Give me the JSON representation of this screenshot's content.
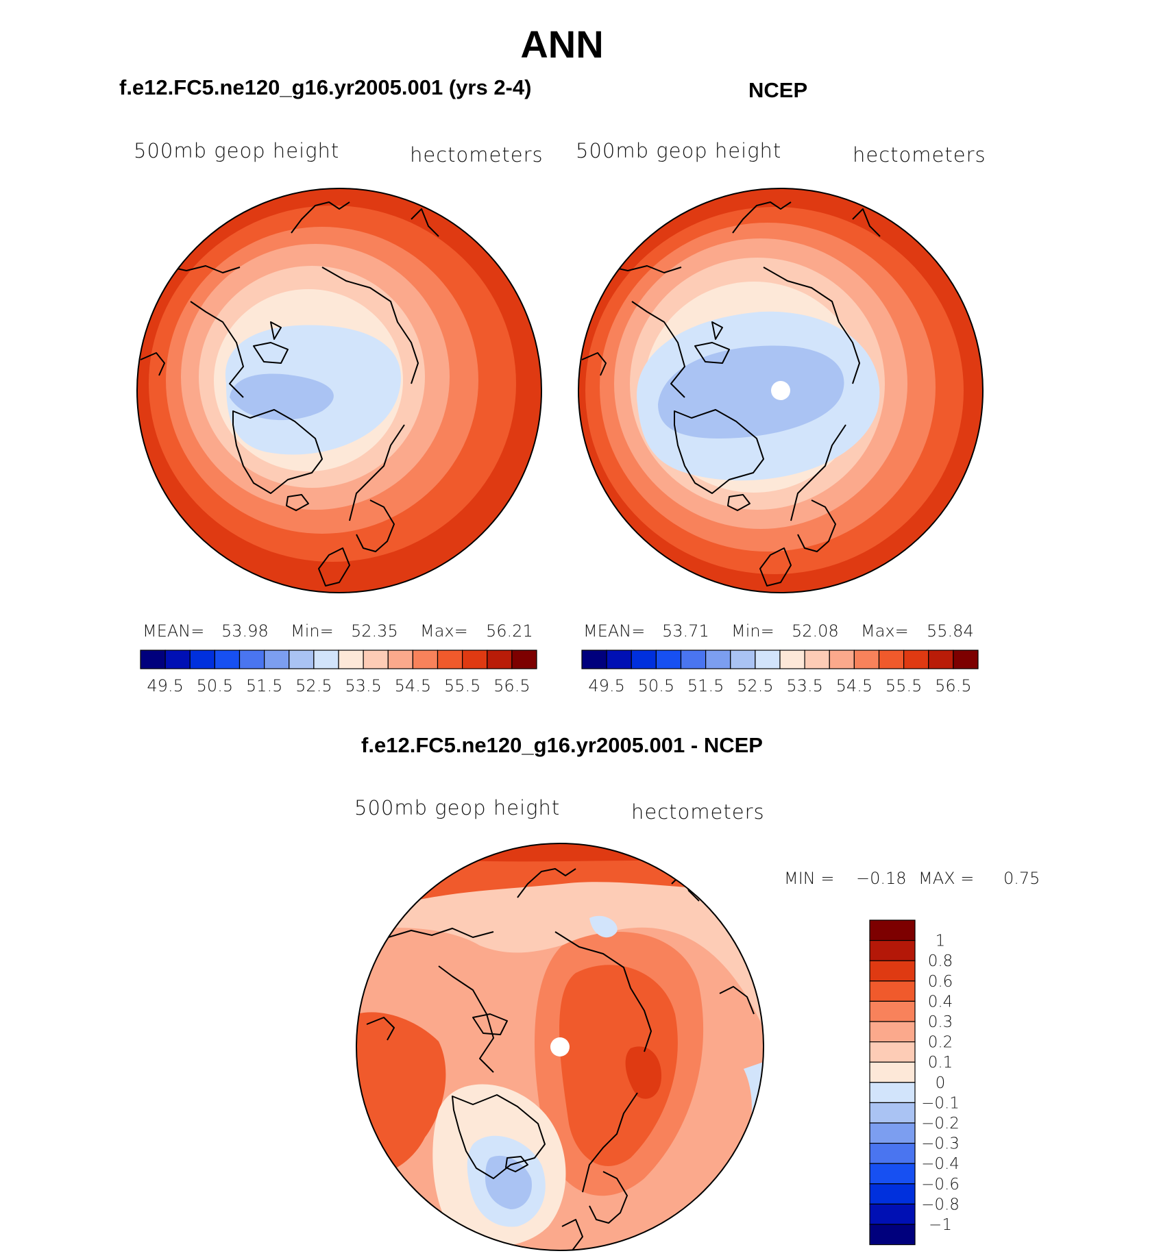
{
  "title": "ANN",
  "panels": [
    {
      "id": "model",
      "case_title": "f.e12.FC5.ne120_g16.yr2005.001 (yrs 2-4)",
      "variable": "500mb geop height",
      "units": "hectometers",
      "stats": {
        "mean_label": "MEAN=",
        "mean": "53.98",
        "min_label": "Min=",
        "min": "52.35",
        "max_label": "Max=",
        "max": "56.21"
      }
    },
    {
      "id": "obs",
      "case_title": "NCEP",
      "variable": "500mb geop height",
      "units": "hectometers",
      "stats": {
        "mean_label": "MEAN=",
        "mean": "53.71",
        "min_label": "Min=",
        "min": "52.08",
        "max_label": "Max=",
        "max": "55.84"
      }
    },
    {
      "id": "diff",
      "case_title": "f.e12.FC5.ne120_g16.yr2005.001 - NCEP",
      "variable": "500mb geop height",
      "units": "hectometers",
      "stats": {
        "min_label": "MIN =",
        "min": "−0.18",
        "max_label": "MAX =",
        "max": "0.75"
      }
    }
  ],
  "colorbar_main": {
    "colors": [
      "#00007d",
      "#0010b4",
      "#0030dd",
      "#1750f2",
      "#4a75f0",
      "#7c9ef0",
      "#aac3f3",
      "#d2e4fb",
      "#fde8d8",
      "#fdccb6",
      "#fba98c",
      "#f8825b",
      "#f05a2c",
      "#df3a12",
      "#b91c08",
      "#7d0000"
    ],
    "tick_labels": [
      "49.5",
      "50.5",
      "51.5",
      "52.5",
      "53.5",
      "54.5",
      "55.5",
      "56.5"
    ]
  },
  "colorbar_diff": {
    "colors_top_to_bottom": [
      "#7d0000",
      "#b41808",
      "#df3a12",
      "#f05a2c",
      "#f8825b",
      "#fba98c",
      "#fdccb6",
      "#fde8d8",
      "#d2e4fb",
      "#aac3f3",
      "#7c9ef0",
      "#4a75f0",
      "#1750f2",
      "#0030dd",
      "#0010b4",
      "#00007d"
    ],
    "tick_labels": [
      "1",
      "0.8",
      "0.6",
      "0.4",
      "0.3",
      "0.2",
      "0.1",
      "0",
      "−0.1",
      "−0.2",
      "−0.3",
      "−0.4",
      "−0.6",
      "−0.8",
      "−1"
    ]
  }
}
